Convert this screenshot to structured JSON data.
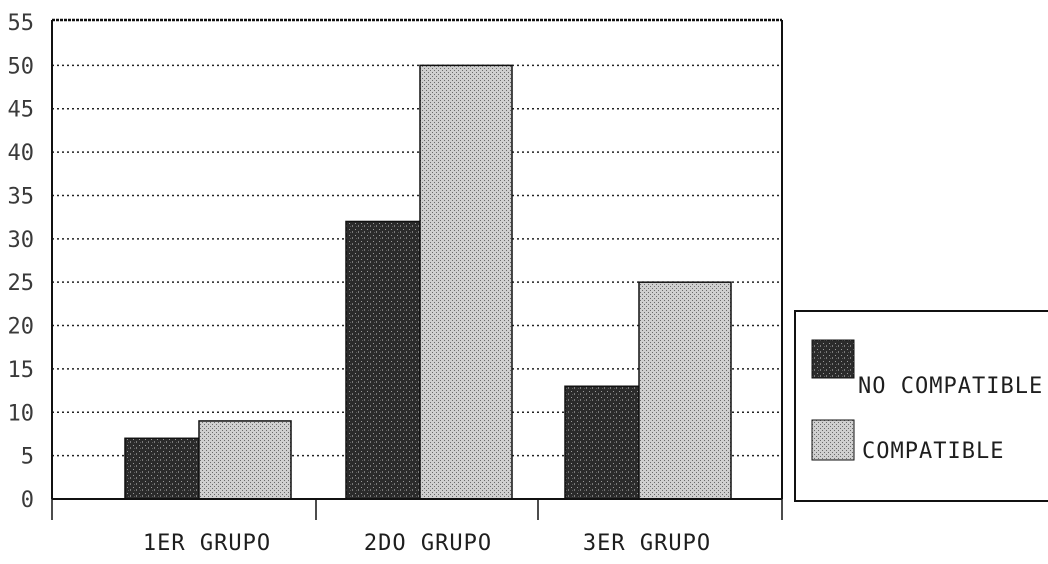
{
  "chart_data": {
    "type": "bar",
    "categories": [
      "1ER GRUPO",
      "2DO GRUPO",
      "3ER GRUPO"
    ],
    "series": [
      {
        "name": "NO COMPATIBLE",
        "values": [
          7,
          32,
          13
        ],
        "color": "#2b2b2b"
      },
      {
        "name": "COMPATIBLE",
        "values": [
          9,
          50,
          25
        ],
        "color": "#bdbdbd"
      }
    ],
    "ylim": [
      0,
      55
    ],
    "yticks": [
      0,
      5,
      10,
      15,
      20,
      25,
      30,
      35,
      40,
      45,
      50,
      55
    ],
    "grid": true,
    "legend": "right"
  }
}
